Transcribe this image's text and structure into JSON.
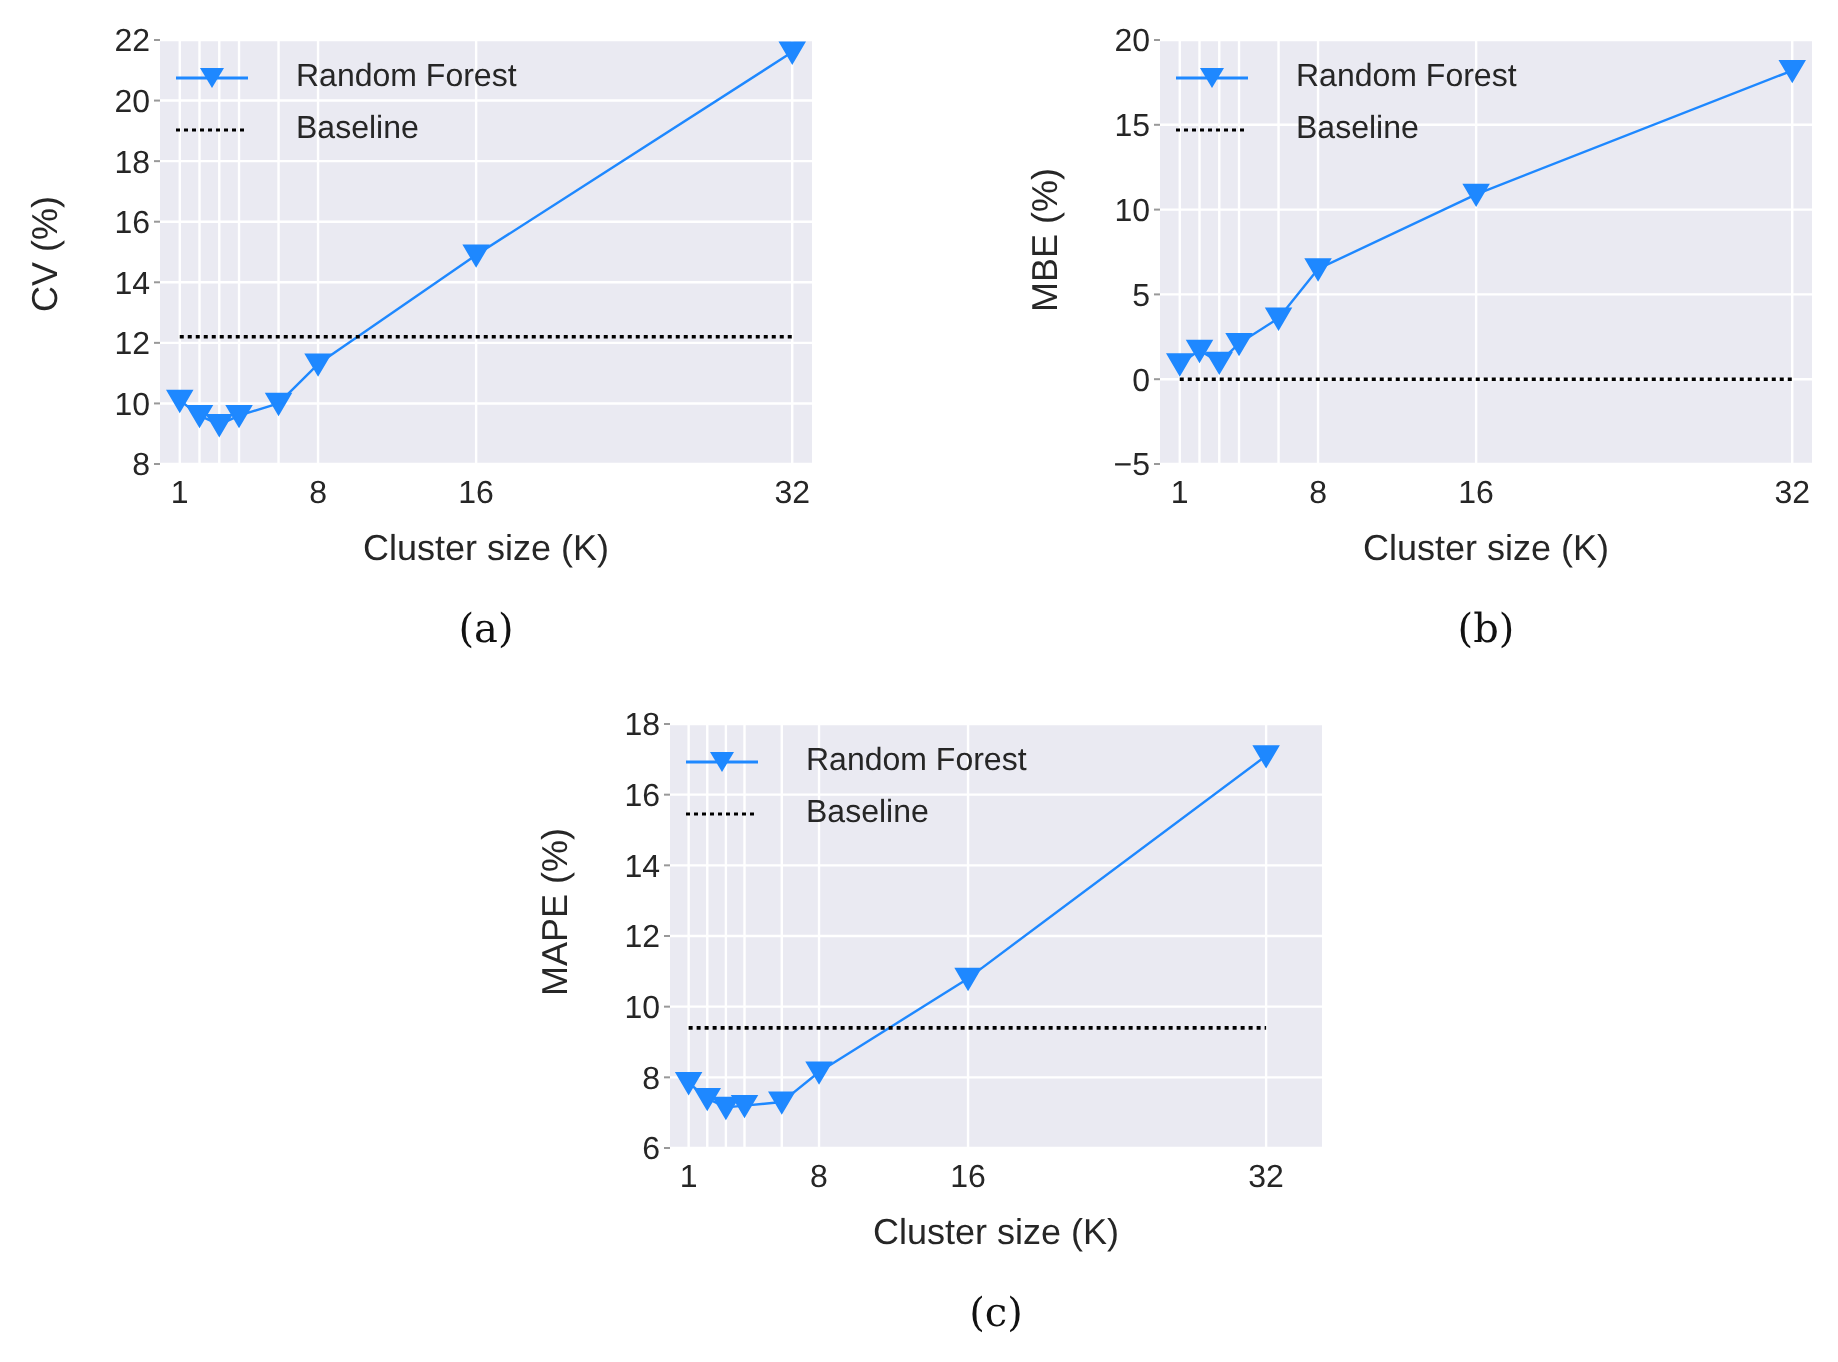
{
  "chart_data": [
    {
      "type": "line",
      "xlabel": "Cluster size (K)",
      "ylabel": "CV (%)",
      "xlim": [
        0,
        33
      ],
      "ylim": [
        8,
        22
      ],
      "xticks": [
        1,
        {
          "value": 2,
          "label": null
        },
        {
          "value": 3,
          "label": null
        },
        {
          "value": 4,
          "label": null
        },
        {
          "value": 6,
          "label": null
        },
        8,
        16,
        32
      ],
      "yticks": [
        8,
        10,
        12,
        14,
        16,
        18,
        20,
        22
      ],
      "grid": true,
      "legend": "top left",
      "annotations": [
        "(a)"
      ],
      "series": [
        {
          "name": "Random Forest",
          "color": "#1e88ff",
          "marker": "triangle",
          "line_style": "solid",
          "x": [
            1,
            2,
            3,
            4,
            6,
            8,
            16,
            32
          ],
          "values": [
            10.1,
            9.6,
            9.3,
            9.6,
            10.0,
            11.3,
            14.9,
            21.6
          ]
        },
        {
          "name": "Baseline",
          "color": "#000000",
          "marker": "none",
          "line_style": "dotted",
          "x": [
            1,
            32
          ],
          "values": [
            12.2,
            12.2
          ]
        }
      ]
    },
    {
      "type": "line",
      "xlabel": "Cluster size (K)",
      "ylabel": "MBE (%)",
      "xlim": [
        0,
        33
      ],
      "ylim": [
        -5,
        20
      ],
      "xticks": [
        1,
        {
          "value": 2,
          "label": null
        },
        {
          "value": 3,
          "label": null
        },
        {
          "value": 4,
          "label": null
        },
        {
          "value": 6,
          "label": null
        },
        8,
        16,
        32
      ],
      "yticks": [
        {
          "value": -5,
          "label": "−5"
        },
        0,
        5,
        10,
        15,
        20
      ],
      "grid": true,
      "legend": "top left",
      "annotations": [
        "(b)"
      ],
      "series": [
        {
          "name": "Random Forest",
          "color": "#1e88ff",
          "marker": "triangle",
          "line_style": "solid",
          "x": [
            1,
            2,
            3,
            4,
            6,
            8,
            16,
            32
          ],
          "values": [
            0.9,
            1.7,
            1.0,
            2.1,
            3.6,
            6.5,
            10.9,
            18.2
          ]
        },
        {
          "name": "Baseline",
          "color": "#000000",
          "marker": "none",
          "line_style": "dotted",
          "x": [
            1,
            32
          ],
          "values": [
            0,
            0
          ]
        }
      ]
    },
    {
      "type": "line",
      "xlabel": "Cluster size (K)",
      "ylabel": "MAPE (%)",
      "xlim": [
        0,
        35
      ],
      "ylim": [
        6,
        18
      ],
      "xticks": [
        1,
        {
          "value": 2,
          "label": null
        },
        {
          "value": 3,
          "label": null
        },
        {
          "value": 4,
          "label": null
        },
        {
          "value": 6,
          "label": null
        },
        8,
        16,
        32
      ],
      "yticks": [
        6,
        8,
        10,
        12,
        14,
        16,
        18
      ],
      "grid": true,
      "legend": "top left",
      "annotations": [
        "(c)"
      ],
      "series": [
        {
          "name": "Random Forest",
          "color": "#1e88ff",
          "marker": "triangle",
          "line_style": "solid",
          "x": [
            1,
            2,
            3,
            4,
            6,
            8,
            16,
            32
          ],
          "values": [
            7.85,
            7.4,
            7.15,
            7.2,
            7.3,
            8.15,
            10.8,
            17.1
          ]
        },
        {
          "name": "Baseline",
          "color": "#000000",
          "marker": "none",
          "line_style": "dotted",
          "x": [
            1,
            32
          ],
          "values": [
            9.4,
            9.4
          ]
        }
      ]
    }
  ]
}
